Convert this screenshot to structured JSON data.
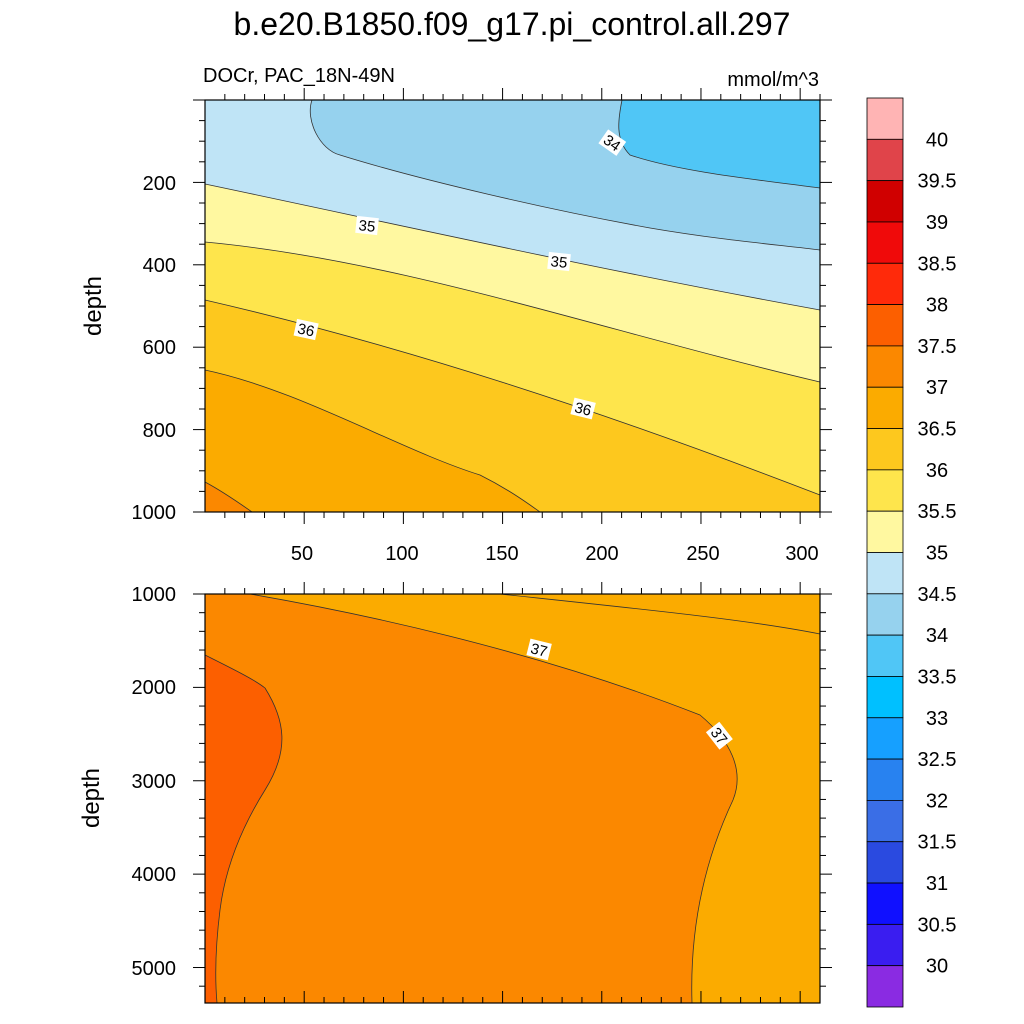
{
  "title": "b.e20.B1850.f09_g17.pi_control.all.297",
  "colors": {
    "c0": "#8a2be2",
    "c1": "#3a1df0",
    "c2": "#1010ff",
    "c3": "#2a4ae0",
    "c4": "#3a6ee6",
    "c5": "#2882f0",
    "c6": "#16a0ff",
    "c7": "#00c0ff",
    "c8": "#50c6f6",
    "c9": "#96d2ee",
    "c10": "#bfe4f6",
    "c11": "#fff8a0",
    "c12": "#fee54c",
    "c13": "#fdc81e",
    "c14": "#fbab00",
    "c15": "#fb8800",
    "c16": "#fc5f00",
    "c17": "#ff2a0a",
    "c18": "#f00a0a",
    "c19": "#d00000",
    "c20": "#e0444a",
    "c21": "#ffb4b4",
    "line": "#333333"
  },
  "chart_data": [
    {
      "type": "heatmap",
      "subtype": "contour",
      "left_label": "DOCr, PAC_18N-49N",
      "right_label": "mmol/m^3",
      "ylabel": "depth",
      "xlim": [
        0,
        310
      ],
      "ylim": [
        1000,
        0
      ],
      "x_ticks": [
        "50",
        "100",
        "150",
        "200",
        "250",
        "300"
      ],
      "y_ticks": [
        "200",
        "400",
        "600",
        "800",
        "1000"
      ],
      "contour_labels": [
        "34",
        "35",
        "35",
        "36",
        "36"
      ]
    },
    {
      "type": "heatmap",
      "subtype": "contour",
      "ylabel": "depth",
      "xlim": [
        0,
        310
      ],
      "ylim": [
        5400,
        1000
      ],
      "y_ticks": [
        "1000",
        "2000",
        "3000",
        "4000",
        "5000"
      ],
      "contour_labels": [
        "37",
        "37"
      ]
    }
  ],
  "colorbar": {
    "levels": [
      "30",
      "30.5",
      "31",
      "31.5",
      "32",
      "32.5",
      "33",
      "33.5",
      "34",
      "34.5",
      "35",
      "35.5",
      "36",
      "36.5",
      "37",
      "37.5",
      "38",
      "38.5",
      "39",
      "39.5",
      "40"
    ]
  }
}
